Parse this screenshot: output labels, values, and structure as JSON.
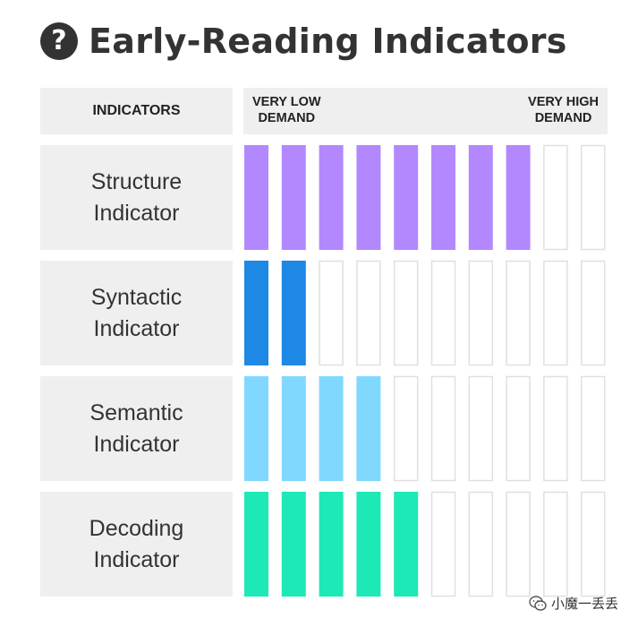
{
  "title": "Early-Reading Indicators",
  "help_icon_glyph": "?",
  "header": {
    "indicators_label": "INDICATORS",
    "scale_low": "VERY LOW\nDEMAND",
    "scale_high": "VERY HIGH\nDEMAND"
  },
  "chart_data": {
    "type": "bar",
    "orientation": "horizontal-segmented",
    "max_segments": 10,
    "categories": [
      "Structure\nIndicator",
      "Syntactic\nIndicator",
      "Semantic\nIndicator",
      "Decoding\nIndicator"
    ],
    "values": [
      8,
      2,
      4,
      5
    ],
    "colors": [
      "#b388ff",
      "#1e88e5",
      "#80d8ff",
      "#1de9b6"
    ],
    "xlabel": "",
    "ylabel": "INDICATORS",
    "scale_labels": [
      "VERY LOW DEMAND",
      "VERY HIGH DEMAND"
    ]
  },
  "colors": {
    "background": "#ffffff",
    "label_background": "#efefef",
    "empty_segment_border": "#e0e0e0",
    "text": "#333333"
  },
  "watermark": {
    "text": "小魔一丢丢",
    "icon": "wechat-icon"
  }
}
